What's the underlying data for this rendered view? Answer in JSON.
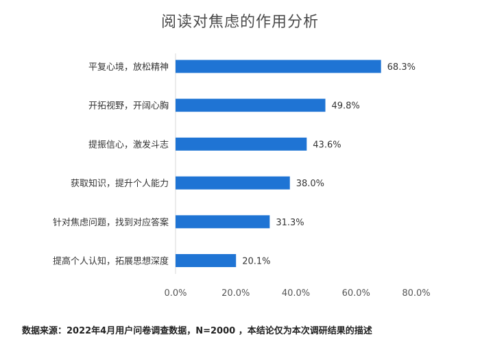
{
  "chart_data": {
    "type": "bar",
    "orientation": "horizontal",
    "title": "阅读对焦虑的作用分析",
    "categories": [
      "平复心境，放松精神",
      "开拓视野，开阔心胸",
      "提振信心，激发斗志",
      "获取知识，提升个人能力",
      "针对焦虑问题，找到对应答案",
      "提高个人认知，拓展思想深度"
    ],
    "values": [
      68.3,
      49.8,
      43.6,
      38.0,
      31.3,
      20.1
    ],
    "value_labels": [
      "68.3%",
      "49.8%",
      "43.6%",
      "38.0%",
      "31.3%",
      "20.1%"
    ],
    "xlim": [
      0,
      80
    ],
    "x_ticks": [
      0,
      20,
      40,
      60,
      80
    ],
    "x_tick_labels": [
      "0.0%",
      "20.0%",
      "40.0%",
      "60.0%",
      "80.0%"
    ],
    "xlabel": "",
    "ylabel": "",
    "grid": false,
    "bar_color": "#1f74d4"
  },
  "footer": {
    "source": "数据来源：2022年4月用户问卷调查数据，N=2000 ，本结论仅为本次调研结果的描述"
  }
}
